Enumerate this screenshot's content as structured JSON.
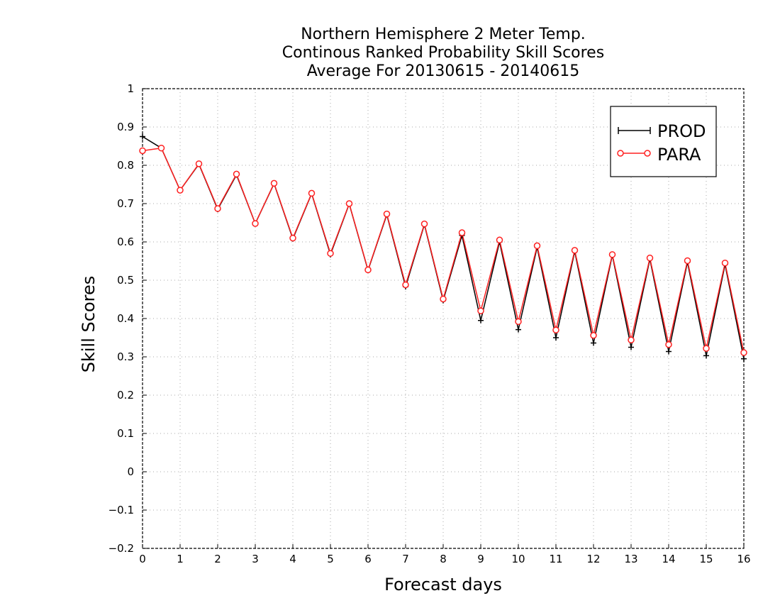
{
  "chart_data": {
    "type": "line",
    "title": [
      "Northern Hemisphere 2 Meter Temp.",
      "Continous Ranked Probability Skill Scores",
      "Average For 20130615 - 20140615"
    ],
    "xlabel": "Forecast days",
    "ylabel": "Skill Scores",
    "xlim": [
      0,
      16
    ],
    "ylim": [
      -0.2,
      1
    ],
    "x_ticks": [
      0,
      1,
      2,
      3,
      4,
      5,
      6,
      7,
      8,
      9,
      10,
      11,
      12,
      13,
      14,
      15,
      16
    ],
    "y_ticks": [
      -0.2,
      -0.1,
      0,
      0.1,
      0.2,
      0.3,
      0.4,
      0.5,
      0.6,
      0.7,
      0.8,
      0.9,
      1
    ],
    "y_tick_labels": [
      "−0.2",
      "−0.1",
      "0",
      "0.1",
      "0.2",
      "0.3",
      "0.4",
      "0.5",
      "0.6",
      "0.7",
      "0.8",
      "0.9",
      "1"
    ],
    "grid": true,
    "legend_position": "top-right",
    "x": [
      0,
      0.5,
      1,
      1.5,
      2,
      2.5,
      3,
      3.5,
      4,
      4.5,
      5,
      5.5,
      6,
      6.5,
      7,
      7.5,
      8,
      8.5,
      9,
      9.5,
      10,
      10.5,
      11,
      11.5,
      12,
      12.5,
      13,
      13.5,
      14,
      14.5,
      15,
      15.5,
      16
    ],
    "series": [
      {
        "name": "PROD",
        "color": "#000000",
        "marker": "plus",
        "values": [
          0.875,
          0.845,
          0.735,
          0.803,
          0.685,
          0.775,
          0.648,
          0.752,
          0.608,
          0.726,
          0.567,
          0.699,
          0.526,
          0.671,
          0.483,
          0.645,
          0.447,
          0.617,
          0.395,
          0.6,
          0.371,
          0.586,
          0.35,
          0.575,
          0.336,
          0.565,
          0.325,
          0.555,
          0.314,
          0.547,
          0.303,
          0.541,
          0.295
        ]
      },
      {
        "name": "PARA",
        "color": "#ff2020",
        "marker": "circle",
        "values": [
          0.838,
          0.845,
          0.735,
          0.804,
          0.687,
          0.777,
          0.648,
          0.753,
          0.61,
          0.727,
          0.57,
          0.7,
          0.527,
          0.673,
          0.488,
          0.647,
          0.451,
          0.624,
          0.42,
          0.605,
          0.392,
          0.59,
          0.37,
          0.578,
          0.356,
          0.567,
          0.344,
          0.558,
          0.332,
          0.551,
          0.322,
          0.545,
          0.311
        ]
      }
    ]
  }
}
